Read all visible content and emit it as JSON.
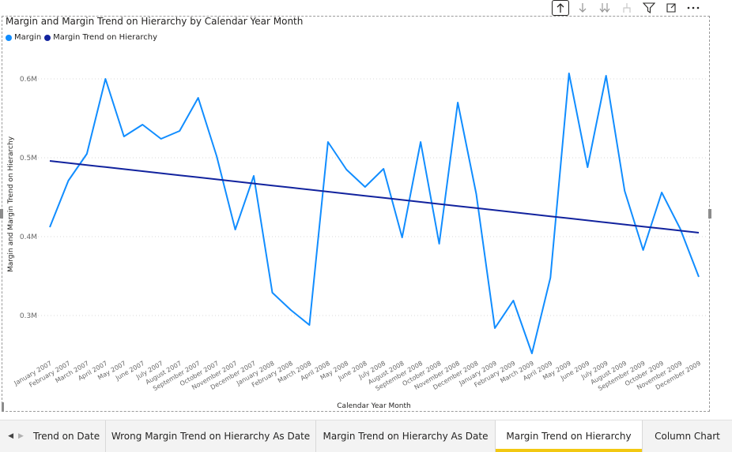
{
  "toolbar": {
    "icons": [
      "drill-up-icon",
      "drill-down-icon",
      "expand-all-down-icon",
      "expand-next-level-icon",
      "filter-icon",
      "focus-mode-icon",
      "more-options-icon"
    ]
  },
  "colors": {
    "margin": "#118DFF",
    "trend": "#12239E",
    "tab_accent": "#F2C811"
  },
  "chart_data": {
    "type": "line",
    "title": "Margin and Margin Trend on Hierarchy by Calendar Year Month",
    "xlabel": "Calendar Year Month",
    "ylabel": "Margin and Margin Trend on Hierarchy",
    "legend_position": "top-left",
    "grid": "horizontal-dotted",
    "ylim": [
      0.25,
      0.63
    ],
    "yticks": [
      0.3,
      0.4,
      0.5,
      0.6
    ],
    "ytick_labels": [
      "0.3M",
      "0.4M",
      "0.5M",
      "0.6M"
    ],
    "categories": [
      "January 2007",
      "February 2007",
      "March 2007",
      "April 2007",
      "May 2007",
      "June 2007",
      "July 2007",
      "August 2007",
      "September 2007",
      "October 2007",
      "November 2007",
      "December 2007",
      "January 2008",
      "February 2008",
      "March 2008",
      "April 2008",
      "May 2008",
      "June 2008",
      "July 2008",
      "August 2008",
      "September 2008",
      "October 2008",
      "November 2008",
      "December 2008",
      "January 2009",
      "February 2009",
      "March 2009",
      "April 2009",
      "May 2009",
      "June 2009",
      "July 2009",
      "August 2009",
      "September 2009",
      "October 2009",
      "November 2009",
      "December 2009"
    ],
    "series": [
      {
        "name": "Margin",
        "values": [
          0.412,
          0.471,
          0.505,
          0.6,
          0.527,
          0.542,
          0.524,
          0.534,
          0.576,
          0.502,
          0.409,
          0.477,
          0.329,
          0.307,
          0.288,
          0.52,
          0.485,
          0.463,
          0.486,
          0.399,
          0.52,
          0.391,
          0.57,
          0.454,
          0.284,
          0.319,
          0.252,
          0.348,
          0.607,
          0.488,
          0.604,
          0.458,
          0.383,
          0.456,
          0.41,
          0.349
        ]
      },
      {
        "name": "Margin Trend on Hierarchy",
        "values": [
          0.496,
          0.4934,
          0.4908,
          0.4882,
          0.4856,
          0.483,
          0.4804,
          0.4778,
          0.4752,
          0.4726,
          0.47,
          0.4674,
          0.4648,
          0.4622,
          0.4596,
          0.457,
          0.4544,
          0.4518,
          0.4492,
          0.4466,
          0.444,
          0.4414,
          0.4388,
          0.4362,
          0.4336,
          0.431,
          0.4284,
          0.4258,
          0.4232,
          0.4206,
          0.418,
          0.4154,
          0.4128,
          0.4102,
          0.4076,
          0.405
        ]
      }
    ]
  },
  "tabs": [
    {
      "label": "Trend on Date",
      "active": false
    },
    {
      "label": "Wrong Margin Trend on Hierarchy As Date",
      "active": false
    },
    {
      "label": "Margin Trend on Hierarchy As Date",
      "active": false
    },
    {
      "label": "Margin Trend on Hierarchy",
      "active": true
    },
    {
      "label": "Column Chart",
      "active": false
    }
  ],
  "tab_nav": {
    "prev": "◀",
    "next": "▶"
  }
}
